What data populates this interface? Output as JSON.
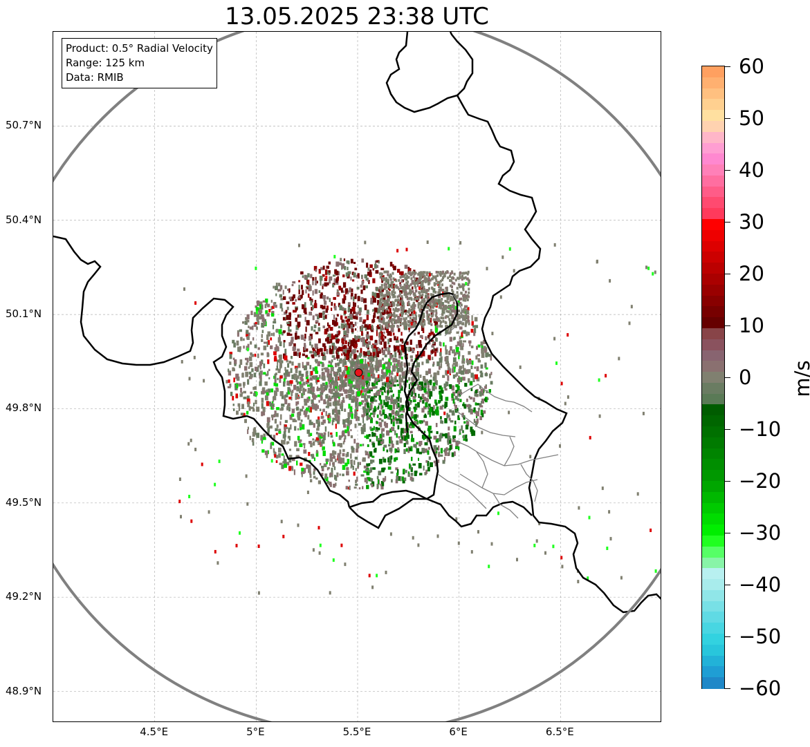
{
  "title": "13.05.2025 23:38 UTC",
  "info_box": {
    "product": "Product: 0.5° Radial Velocity",
    "range": "Range: 125 km",
    "data_source": "Data: RMIB"
  },
  "lat_ticks": [
    {
      "label": "50.7°N",
      "lat": 50.7
    },
    {
      "label": "50.4°N",
      "lat": 50.4
    },
    {
      "label": "50.1°N",
      "lat": 50.1
    },
    {
      "label": "49.8°N",
      "lat": 49.8
    },
    {
      "label": "49.5°N",
      "lat": 49.5
    },
    {
      "label": "49.2°N",
      "lat": 49.2
    },
    {
      "label": "48.9°N",
      "lat": 48.9
    }
  ],
  "lon_ticks": [
    {
      "label": "4.5°E",
      "lon": 4.5
    },
    {
      "label": "5°E",
      "lon": 5.0
    },
    {
      "label": "5.5°E",
      "lon": 5.5
    },
    {
      "label": "6°E",
      "lon": 6.0
    },
    {
      "label": "6.5°E",
      "lon": 6.5
    }
  ],
  "map_extent": {
    "lon_min": 4.0,
    "lon_max": 7.0,
    "lat_min": 48.8,
    "lat_max": 51.0
  },
  "radar_site": {
    "lon": 5.505,
    "lat": 49.915,
    "color": "#e8141b"
  },
  "colorbar": {
    "unit": "m/s",
    "min": -60,
    "max": 60,
    "ticks": [
      {
        "value": 60,
        "label": "60"
      },
      {
        "value": 50,
        "label": "50"
      },
      {
        "value": 40,
        "label": "40"
      },
      {
        "value": 30,
        "label": "30"
      },
      {
        "value": 20,
        "label": "20"
      },
      {
        "value": 10,
        "label": "10"
      },
      {
        "value": 0,
        "label": "0"
      },
      {
        "value": -10,
        "label": "−10"
      },
      {
        "value": -20,
        "label": "−20"
      },
      {
        "value": -30,
        "label": "−30"
      },
      {
        "value": -40,
        "label": "−40"
      },
      {
        "value": -50,
        "label": "−50"
      },
      {
        "value": -60,
        "label": "−60"
      }
    ],
    "colors_top_to_bottom": [
      "#ffa060",
      "#ffb070",
      "#ffc080",
      "#ffd090",
      "#ffe0a0",
      "#ffd2b0",
      "#ffb6c8",
      "#ff9ed2",
      "#ff88d0",
      "#ff80b8",
      "#ff6ea0",
      "#ff5c88",
      "#ff4a70",
      "#ff3a5c",
      "#ff0000",
      "#ee0000",
      "#dd0000",
      "#cc0000",
      "#bb0000",
      "#aa0000",
      "#990000",
      "#880000",
      "#770000",
      "#660000",
      "#884448",
      "#8a525e",
      "#886470",
      "#8a7070",
      "#808070",
      "#6a7c62",
      "#5a7a56",
      "#005c00",
      "#006600",
      "#007000",
      "#007a00",
      "#008400",
      "#008e00",
      "#009800",
      "#00a600",
      "#00b800",
      "#00ca00",
      "#00dc00",
      "#00ee00",
      "#20ff20",
      "#56ff66",
      "#88f4a8",
      "#b8f0f0",
      "#a8ecec",
      "#90e6e8",
      "#78e0e6",
      "#60dae4",
      "#48d6e2",
      "#32d2e0",
      "#28c6dc",
      "#22b2d8",
      "#1f9ed4",
      "#1f88c8"
    ]
  }
}
